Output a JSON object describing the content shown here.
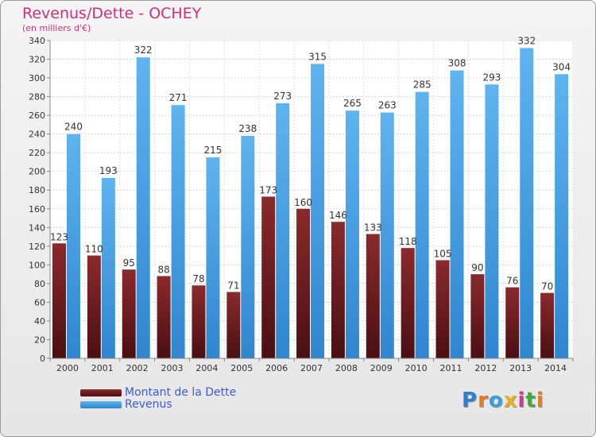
{
  "header": {
    "title": "Revenus/Dette - OCHEY",
    "subtitle": "(en milliers d'€)"
  },
  "legend": {
    "items": [
      {
        "label": "Montant de la Dette",
        "color": "#7a1f22"
      },
      {
        "label": "Revenus",
        "color": "#4ea6e6"
      }
    ]
  },
  "logo": {
    "text": "Proxiti"
  },
  "chart_data": {
    "type": "bar",
    "title": "Revenus/Dette - OCHEY",
    "subtitle": "(en milliers d'€)",
    "categories": [
      "2000",
      "2001",
      "2002",
      "2003",
      "2004",
      "2005",
      "2006",
      "2007",
      "2008",
      "2009",
      "2010",
      "2011",
      "2012",
      "2013",
      "2014"
    ],
    "series": [
      {
        "name": "Montant de la Dette",
        "color": "#7a1f22",
        "values": [
          123,
          110,
          95,
          88,
          78,
          71,
          173,
          160,
          146,
          133,
          118,
          105,
          90,
          76,
          70
        ]
      },
      {
        "name": "Revenus",
        "color": "#4ea6e6",
        "values": [
          240,
          193,
          322,
          271,
          215,
          238,
          273,
          315,
          265,
          263,
          285,
          308,
          293,
          332,
          304
        ]
      }
    ],
    "ylim": [
      0,
      340
    ],
    "ytick_step": 20,
    "grid": true,
    "legend_position": "bottom-left"
  }
}
